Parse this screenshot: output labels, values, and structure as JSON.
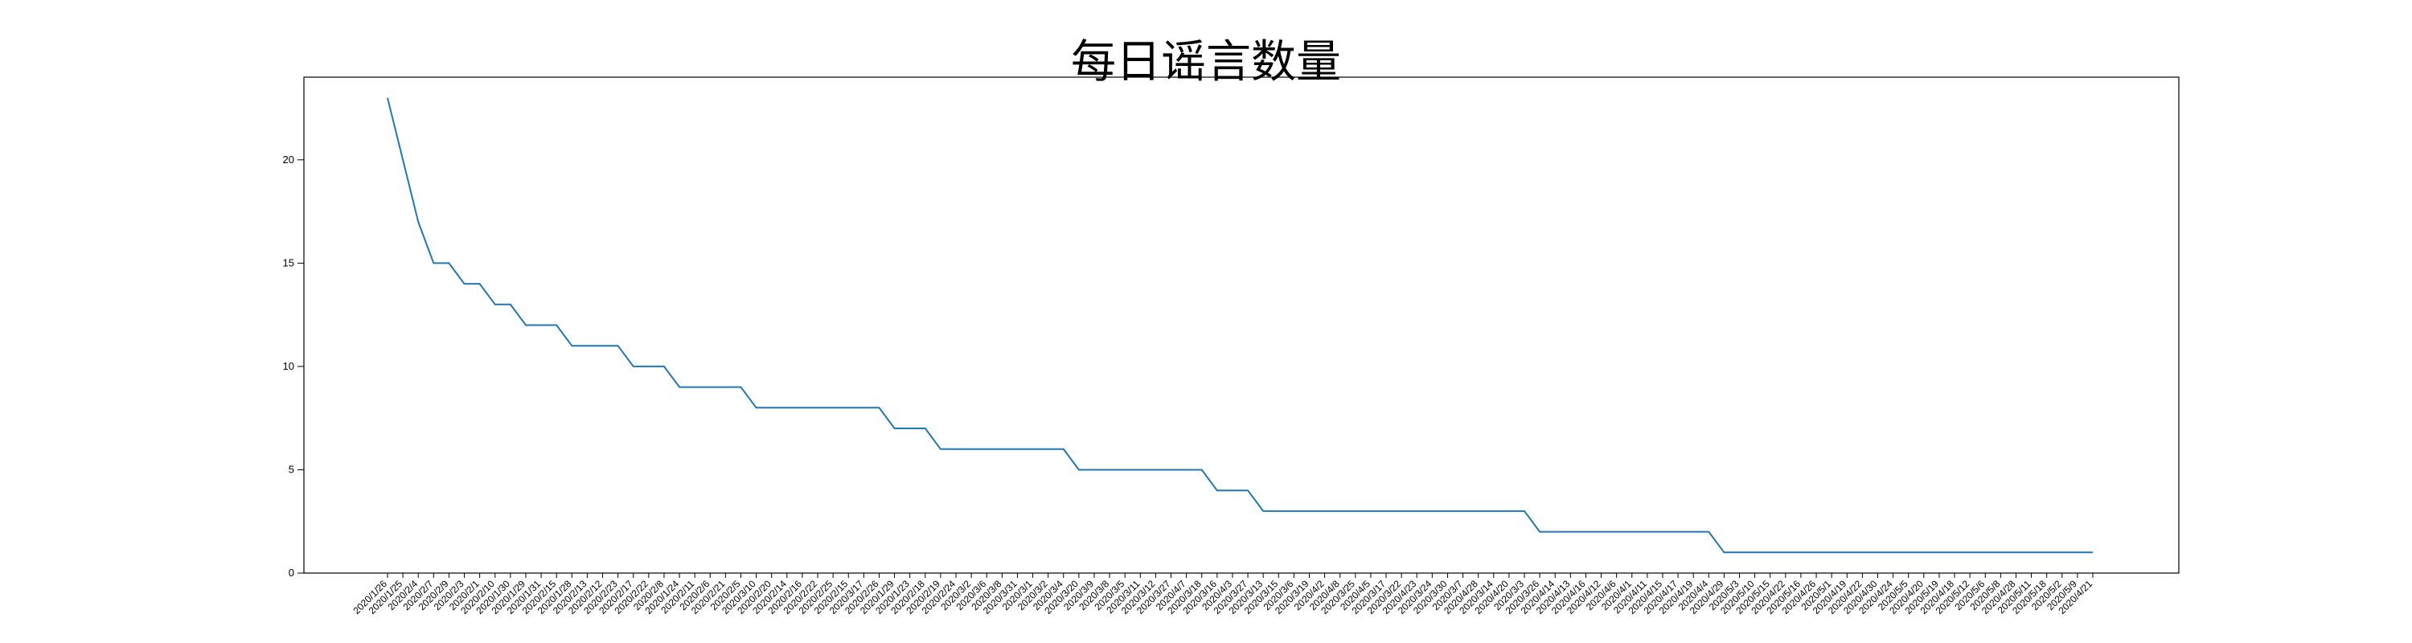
{
  "chart_data": {
    "type": "line",
    "title": "每日谣言数量",
    "xlabel": "",
    "ylabel": "",
    "ylim": [
      0,
      24
    ],
    "yticks": [
      0,
      5,
      10,
      15,
      20
    ],
    "grid": false,
    "legend": "none",
    "series_color": "#1f77b4",
    "categories": [
      "2020/1/26",
      "2020/1/25",
      "2020/2/4",
      "2020/2/7",
      "2020/2/9",
      "2020/2/3",
      "2020/2/1",
      "2020/2/10",
      "2020/1/30",
      "2020/1/29",
      "2020/1/31",
      "2020/2/15",
      "2020/1/28",
      "2020/2/13",
      "2020/2/12",
      "2020/2/23",
      "2020/2/17",
      "2020/2/22",
      "2020/2/8",
      "2020/1/24",
      "2020/2/11",
      "2020/2/6",
      "2020/2/21",
      "2020/2/5",
      "2020/3/10",
      "2020/2/20",
      "2020/2/14",
      "2020/2/16",
      "2020/2/22",
      "2020/2/25",
      "2020/2/15",
      "2020/3/17",
      "2020/2/26",
      "2020/1/29",
      "2020/1/23",
      "2020/2/18",
      "2020/2/19",
      "2020/2/24",
      "2020/3/2",
      "2020/3/6",
      "2020/3/8",
      "2020/3/31",
      "2020/3/1",
      "2020/3/2",
      "2020/3/4",
      "2020/3/20",
      "2020/3/9",
      "2020/3/8",
      "2020/3/5",
      "2020/3/11",
      "2020/3/12",
      "2020/3/27",
      "2020/4/7",
      "2020/3/18",
      "2020/3/16",
      "2020/4/3",
      "2020/3/27",
      "2020/3/13",
      "2020/3/15",
      "2020/3/6",
      "2020/3/19",
      "2020/4/2",
      "2020/4/8",
      "2020/3/25",
      "2020/4/5",
      "2020/3/17",
      "2020/3/22",
      "2020/4/23",
      "2020/3/24",
      "2020/3/30",
      "2020/3/7",
      "2020/4/28",
      "2020/3/14",
      "2020/4/20",
      "2020/3/3",
      "2020/3/26",
      "2020/4/14",
      "2020/4/13",
      "2020/4/16",
      "2020/4/12",
      "2020/4/6",
      "2020/4/1",
      "2020/4/11",
      "2020/4/15",
      "2020/4/17",
      "2020/4/19",
      "2020/4/4",
      "2020/4/29",
      "2020/5/3",
      "2020/5/10",
      "2020/5/15",
      "2020/4/22",
      "2020/5/16",
      "2020/4/26",
      "2020/5/1",
      "2020/4/19",
      "2020/4/22",
      "2020/4/30",
      "2020/4/24",
      "2020/5/5",
      "2020/4/20",
      "2020/5/19",
      "2020/4/18",
      "2020/5/12",
      "2020/5/6",
      "2020/5/8",
      "2020/4/28",
      "2020/5/11",
      "2020/5/18",
      "2020/5/2",
      "2020/5/9",
      "2020/4/21"
    ],
    "values": [
      23,
      20,
      17,
      15,
      15,
      14,
      14,
      13,
      13,
      12,
      12,
      12,
      11,
      11,
      11,
      11,
      10,
      10,
      10,
      9,
      9,
      9,
      9,
      9,
      8,
      8,
      8,
      8,
      8,
      8,
      8,
      8,
      8,
      7,
      7,
      7,
      6,
      6,
      6,
      6,
      6,
      6,
      6,
      6,
      6,
      5,
      5,
      5,
      5,
      5,
      5,
      5,
      5,
      5,
      4,
      4,
      4,
      3,
      3,
      3,
      3,
      3,
      3,
      3,
      3,
      3,
      3,
      3,
      3,
      3,
      3,
      3,
      3,
      3,
      3,
      2,
      2,
      2,
      2,
      2,
      2,
      2,
      2,
      2,
      2,
      2,
      2,
      1,
      1,
      1,
      1,
      1,
      1,
      1,
      1,
      1,
      1,
      1,
      1,
      1,
      1,
      1,
      1,
      1,
      1,
      1,
      1,
      1,
      1,
      1,
      1,
      1
    ]
  }
}
